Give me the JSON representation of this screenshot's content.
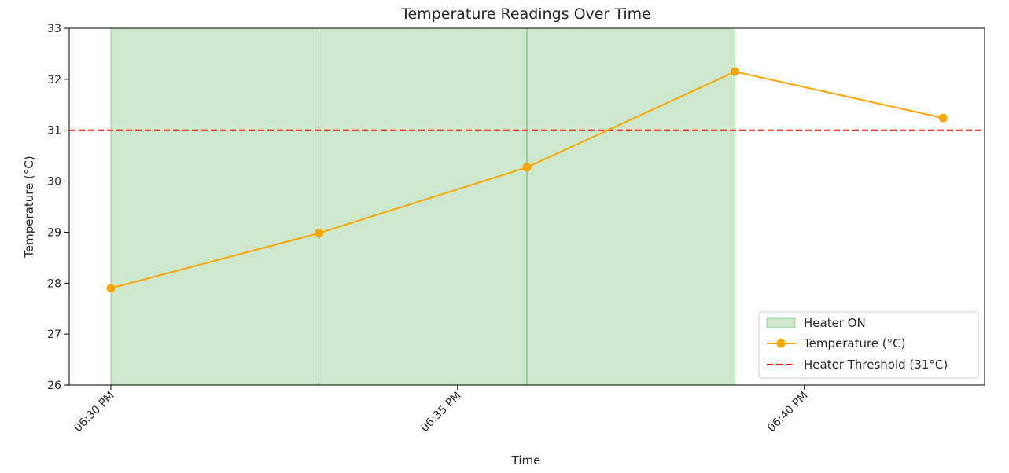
{
  "chart_data": {
    "type": "line",
    "title": "Temperature Readings Over Time",
    "xlabel": "Time",
    "ylabel": "Temperature (°C)",
    "ylim": [
      26,
      33
    ],
    "xlim": [
      "06:29:24 PM",
      "06:42:36 PM"
    ],
    "yticks": [
      26,
      27,
      28,
      29,
      30,
      31,
      32,
      33
    ],
    "xticks": [
      {
        "time": "06:30:00 PM",
        "label": "06:30 PM"
      },
      {
        "time": "06:35:00 PM",
        "label": "06:35 PM"
      },
      {
        "time": "06:40:00 PM",
        "label": "06:40 PM"
      }
    ],
    "grid": false,
    "legend_position": "lower-right",
    "series": [
      {
        "name": "Temperature (°C)",
        "color": "#ffa500",
        "marker": "circle",
        "points": [
          {
            "time": "06:30:00 PM",
            "value": 27.9
          },
          {
            "time": "06:33:00 PM",
            "value": 28.98
          },
          {
            "time": "06:36:00 PM",
            "value": 30.27
          },
          {
            "time": "06:39:00 PM",
            "value": 32.15
          },
          {
            "time": "06:42:00 PM",
            "value": 31.24
          }
        ]
      }
    ],
    "threshold": {
      "name": "Heater Threshold (31°C)",
      "value": 31,
      "color": "#ff0000",
      "style": "dashed"
    },
    "shaded_regions": {
      "name": "Heater ON",
      "color": "#2ca02c",
      "regions": [
        {
          "start": "06:30:00 PM",
          "end": "06:33:00 PM"
        },
        {
          "start": "06:33:00 PM",
          "end": "06:36:00 PM"
        },
        {
          "start": "06:36:00 PM",
          "end": "06:39:00 PM"
        }
      ]
    },
    "legend": [
      "Heater ON",
      "Temperature (°C)",
      "Heater Threshold (31°C)"
    ]
  }
}
